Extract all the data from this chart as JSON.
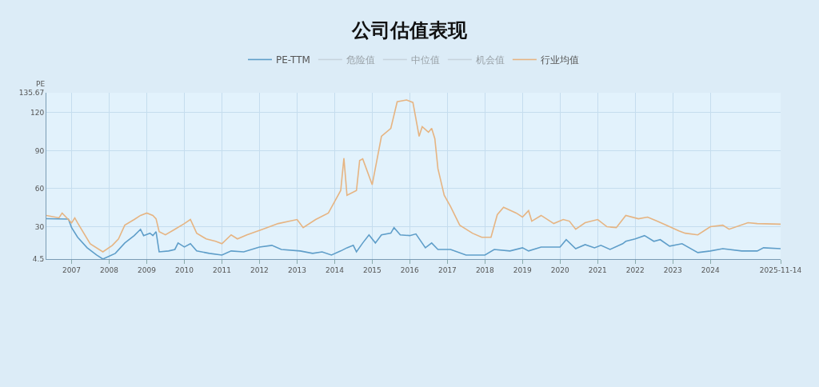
{
  "chart_data": {
    "type": "line",
    "title": "公司估值表现",
    "ylabel": "PE",
    "ylim": [
      4.5,
      135.67
    ],
    "yticks": [
      4.5,
      30,
      60,
      90,
      120,
      135.67
    ],
    "xlim": [
      "2006-05-01",
      "2025-11-14"
    ],
    "xticks": [
      {
        "value": "2007-01-01",
        "label": "2007"
      },
      {
        "value": "2008-01-01",
        "label": "2008"
      },
      {
        "value": "2009-01-01",
        "label": "2009"
      },
      {
        "value": "2010-01-01",
        "label": "2010"
      },
      {
        "value": "2011-01-01",
        "label": "2011"
      },
      {
        "value": "2012-01-01",
        "label": "2012"
      },
      {
        "value": "2013-01-01",
        "label": "2013"
      },
      {
        "value": "2014-01-01",
        "label": "2014"
      },
      {
        "value": "2015-01-01",
        "label": "2015"
      },
      {
        "value": "2016-01-01",
        "label": "2016"
      },
      {
        "value": "2017-01-01",
        "label": "2017"
      },
      {
        "value": "2018-01-01",
        "label": "2018"
      },
      {
        "value": "2019-01-01",
        "label": "2019"
      },
      {
        "value": "2020-01-01",
        "label": "2020"
      },
      {
        "value": "2021-01-01",
        "label": "2021"
      },
      {
        "value": "2022-01-01",
        "label": "2022"
      },
      {
        "value": "2023-01-01",
        "label": "2023"
      },
      {
        "value": "2024-01-01",
        "label": "2024"
      },
      {
        "value": "2025-11-14",
        "label": "2025-11-14"
      }
    ],
    "grid": true,
    "legend": "top",
    "series": [
      {
        "name": "PE-TTM",
        "color": "#5f9ec9",
        "x": [
          "2006-05",
          "2006-12",
          "2007-01",
          "2007-03",
          "2007-06",
          "2007-09",
          "2007-11",
          "2008-03",
          "2008-06",
          "2008-09",
          "2008-11",
          "2008-12",
          "2009-02",
          "2009-03",
          "2009-04",
          "2009-05",
          "2009-08",
          "2009-10",
          "2009-11",
          "2010-01",
          "2010-03",
          "2010-05",
          "2010-09",
          "2011-01",
          "2011-04",
          "2011-08",
          "2012-01",
          "2012-05",
          "2012-08",
          "2013-02",
          "2013-06",
          "2013-09",
          "2013-12",
          "2014-03",
          "2014-05",
          "2014-07",
          "2014-08",
          "2014-10",
          "2014-12",
          "2015-02",
          "2015-04",
          "2015-07",
          "2015-08",
          "2015-10",
          "2016-01",
          "2016-03",
          "2016-06",
          "2016-08",
          "2016-10",
          "2017-02",
          "2017-07",
          "2018-01",
          "2018-04",
          "2018-09",
          "2019-01",
          "2019-03",
          "2019-07",
          "2019-09",
          "2020-01",
          "2020-03",
          "2020-06",
          "2020-09",
          "2020-12",
          "2021-02",
          "2021-05",
          "2021-09",
          "2021-10",
          "2022-01",
          "2022-04",
          "2022-07",
          "2022-09",
          "2022-12",
          "2023-04",
          "2023-09",
          "2024-01",
          "2024-05",
          "2024-11",
          "2025-04",
          "2025-06",
          "2025-11-14"
        ],
        "values": [
          36.3,
          36,
          29.3,
          21.7,
          13.4,
          7.7,
          4.5,
          9,
          17.2,
          23,
          28,
          23,
          24.9,
          23,
          26.1,
          10.2,
          10.9,
          12.1,
          17.2,
          14,
          16.6,
          10.9,
          9,
          7.7,
          10.9,
          10.2,
          14,
          15.3,
          12.1,
          10.9,
          9,
          10.2,
          7.7,
          10.9,
          13.4,
          15.3,
          10.2,
          17.2,
          23.6,
          17.2,
          23.6,
          24.9,
          29.3,
          23.6,
          23,
          24.3,
          13.4,
          17.2,
          12.1,
          12.1,
          7.7,
          7.7,
          12.1,
          10.9,
          13.4,
          10.9,
          14,
          14,
          14,
          19.8,
          12.7,
          15.9,
          13.4,
          15.3,
          12.1,
          16.6,
          18.5,
          20.4,
          23,
          18.5,
          19.8,
          14.7,
          16.6,
          9.6,
          10.9,
          12.7,
          10.9,
          10.9,
          13.4,
          12.7
        ]
      },
      {
        "name": "危险值",
        "color": "#b4bcc4"
      },
      {
        "name": "中位值",
        "color": "#b4bcc4"
      },
      {
        "name": "机会值",
        "color": "#b4bcc4"
      },
      {
        "name": "行业均值",
        "color": "#e6b482",
        "x": [
          "2006-05",
          "2006-09",
          "2006-10",
          "2007-01",
          "2007-02",
          "2007-03",
          "2007-07",
          "2007-11",
          "2008-02",
          "2008-04",
          "2008-06",
          "2008-09",
          "2008-11",
          "2009-01",
          "2009-03",
          "2009-04",
          "2009-05",
          "2009-07",
          "2009-10",
          "2010-01",
          "2010-03",
          "2010-05",
          "2010-08",
          "2010-11",
          "2011-01",
          "2011-04",
          "2011-06",
          "2011-09",
          "2012-02",
          "2012-07",
          "2013-01",
          "2013-03",
          "2013-07",
          "2013-11",
          "2014-03",
          "2014-04",
          "2014-05",
          "2014-08",
          "2014-09",
          "2014-10",
          "2015-01",
          "2015-04",
          "2015-07",
          "2015-09",
          "2015-12",
          "2016-02",
          "2016-04",
          "2016-05",
          "2016-07",
          "2016-08",
          "2016-09",
          "2016-10",
          "2016-12",
          "2017-02",
          "2017-05",
          "2017-09",
          "2017-12",
          "2018-03",
          "2018-05",
          "2018-07",
          "2018-11",
          "2019-01",
          "2019-03",
          "2019-04",
          "2019-07",
          "2019-11",
          "2020-02",
          "2020-04",
          "2020-06",
          "2020-09",
          "2021-01",
          "2021-04",
          "2021-07",
          "2021-10",
          "2022-02",
          "2022-05",
          "2022-08",
          "2022-11",
          "2023-03",
          "2023-05",
          "2023-09",
          "2024-01",
          "2024-05",
          "2024-07",
          "2025-01",
          "2025-04",
          "2025-11-14"
        ],
        "values": [
          38.9,
          37,
          40.8,
          33,
          37,
          33,
          16.6,
          10.2,
          15.3,
          20.4,
          31.2,
          35.7,
          38.9,
          40.8,
          38.9,
          36.3,
          26.1,
          23.6,
          28,
          32.5,
          35.7,
          24.9,
          20.4,
          18.5,
          16.6,
          23.6,
          20.4,
          23.6,
          28,
          32.5,
          35.7,
          29.3,
          35.7,
          40.8,
          58.6,
          84,
          54.8,
          58.6,
          82.2,
          83.5,
          63.1,
          101.3,
          107.6,
          128.6,
          130,
          128,
          101.3,
          108.9,
          104.5,
          107.6,
          99.4,
          75.8,
          54.8,
          45.9,
          31.2,
          24.9,
          21.7,
          21.7,
          39.5,
          45.3,
          40.8,
          37.6,
          42.7,
          34.4,
          38.9,
          32.5,
          35.7,
          34.4,
          28,
          33.2,
          35.7,
          30,
          29.3,
          38.9,
          36.3,
          37.6,
          34.4,
          31.2,
          26.8,
          24.9,
          23.6,
          30,
          31.2,
          28,
          33.2,
          32.5,
          32
        ]
      }
    ]
  }
}
